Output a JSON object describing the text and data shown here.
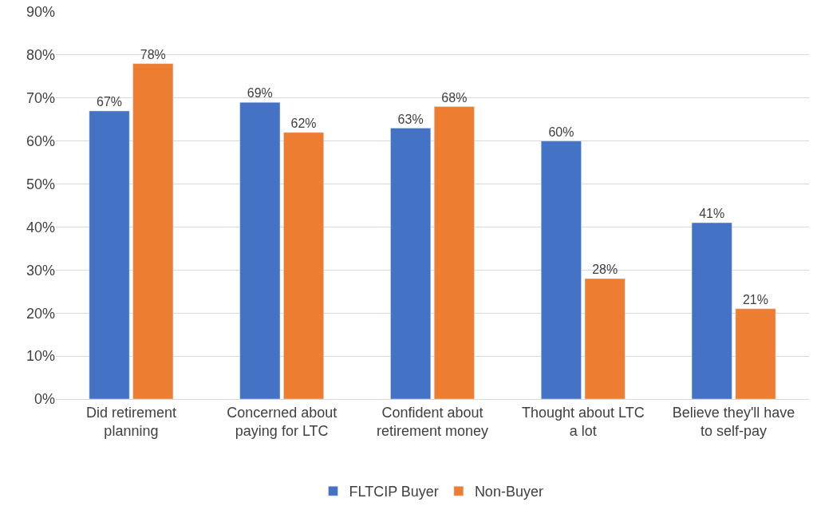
{
  "chart_data": {
    "type": "bar",
    "categories": [
      "Did retirement planning",
      "Concerned about paying for LTC",
      "Confident about retirement money",
      "Thought about LTC a lot",
      "Believe they'll have to self-pay"
    ],
    "series": [
      {
        "name": "FLTCIP Buyer",
        "color": "#4472c4",
        "values": [
          67,
          69,
          63,
          60,
          41
        ],
        "value_labels": [
          "67%",
          "69%",
          "63%",
          "60%",
          "41%"
        ]
      },
      {
        "name": "Non-Buyer",
        "color": "#ed7d31",
        "values": [
          78,
          62,
          68,
          28,
          21
        ],
        "value_labels": [
          "78%",
          "62%",
          "68%",
          "28%",
          "21%"
        ]
      }
    ],
    "ylim": [
      0,
      90
    ],
    "yticks": [
      {
        "value": 0,
        "label": "0%"
      },
      {
        "value": 10,
        "label": "10%"
      },
      {
        "value": 20,
        "label": "20%"
      },
      {
        "value": 30,
        "label": "30%"
      },
      {
        "value": 40,
        "label": "40%"
      },
      {
        "value": 50,
        "label": "50%"
      },
      {
        "value": 60,
        "label": "60%"
      },
      {
        "value": 70,
        "label": "70%"
      },
      {
        "value": 80,
        "label": "80%"
      },
      {
        "value": 90,
        "label": "90%"
      }
    ],
    "grid": "y",
    "legend": "bottom"
  }
}
